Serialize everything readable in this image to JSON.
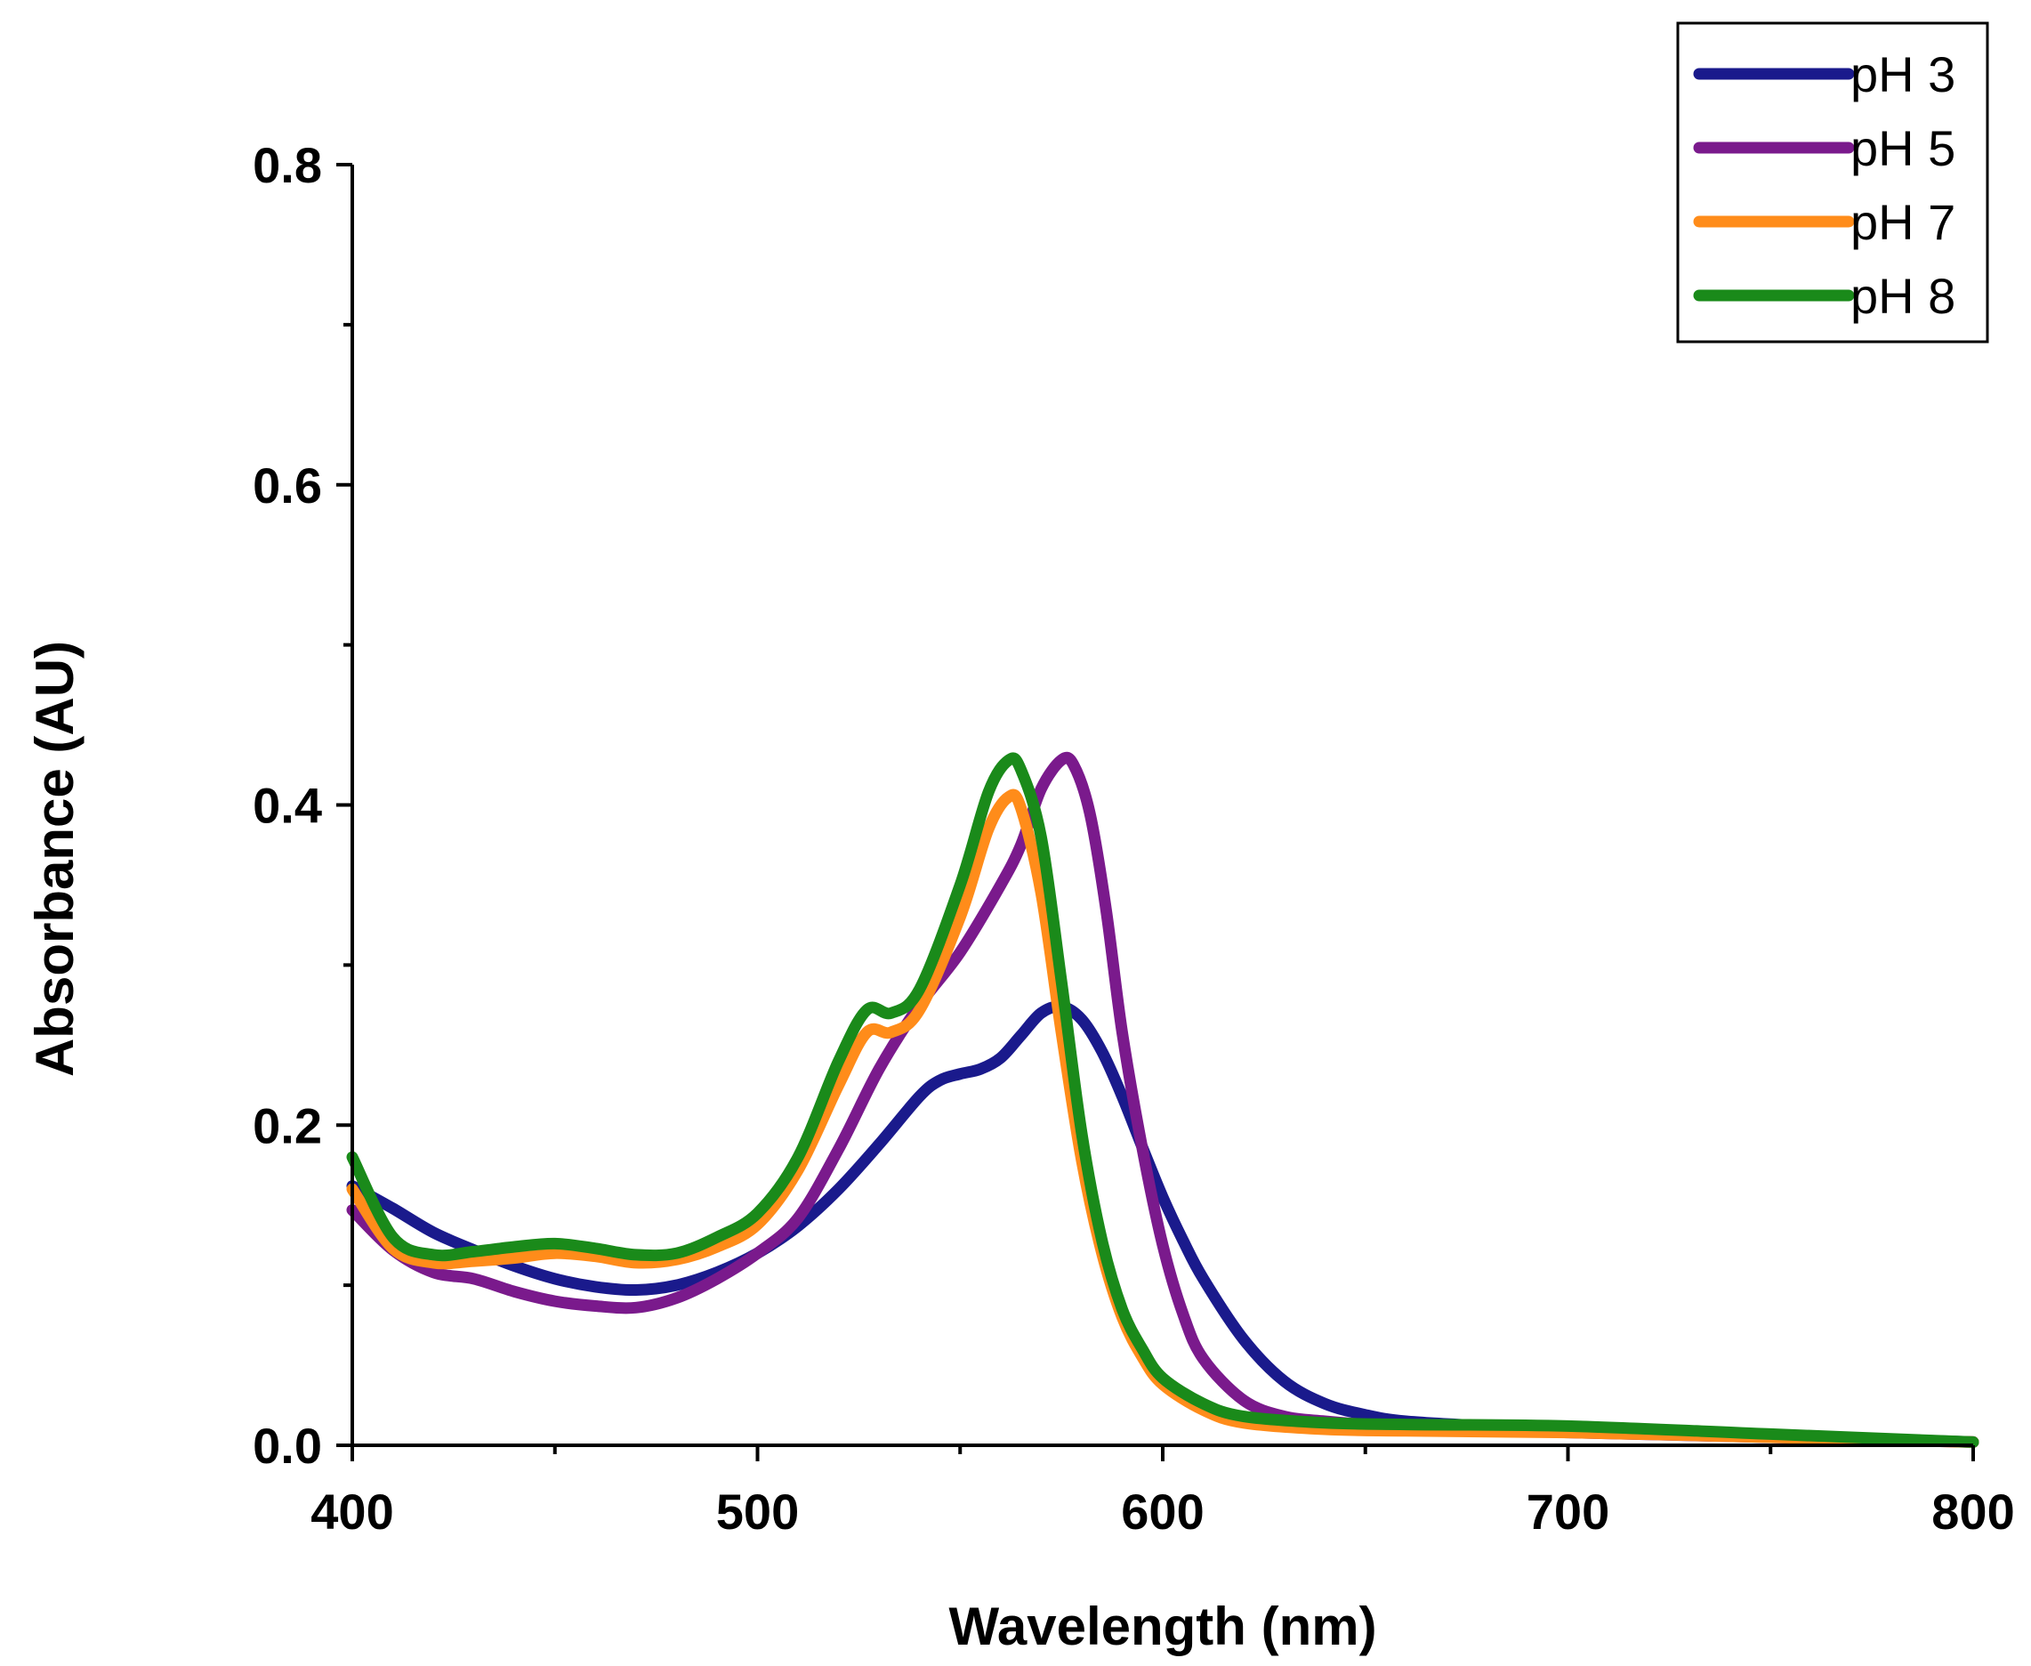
{
  "chart_data": {
    "type": "line",
    "xlabel": "Wavelength (nm)",
    "ylabel": "Absorbance (AU)",
    "xlim": [
      400,
      800
    ],
    "ylim": [
      0.0,
      0.8
    ],
    "x_ticks": [
      {
        "value": 400,
        "label": "400"
      },
      {
        "value": 500,
        "label": "500"
      },
      {
        "value": 600,
        "label": "600"
      },
      {
        "value": 700,
        "label": "700"
      },
      {
        "value": 800,
        "label": "800"
      }
    ],
    "x_minor_ticks": [
      450,
      550,
      650,
      750
    ],
    "y_ticks": [
      {
        "value": 0.0,
        "label": "0.0"
      },
      {
        "value": 0.2,
        "label": "0.2"
      },
      {
        "value": 0.4,
        "label": "0.4"
      },
      {
        "value": 0.6,
        "label": "0.6"
      },
      {
        "value": 0.8,
        "label": "0.8"
      }
    ],
    "y_minor_ticks": [
      0.1,
      0.3,
      0.5,
      0.7
    ],
    "grid": false,
    "legend_position": "top-right",
    "series": [
      {
        "name": "pH 3",
        "color": "#1a1a8c",
        "x": [
          400,
          410,
          420,
          430,
          440,
          450,
          460,
          470,
          480,
          490,
          500,
          510,
          520,
          530,
          540,
          545,
          550,
          555,
          560,
          565,
          570,
          575,
          580,
          585,
          590,
          595,
          600,
          605,
          610,
          620,
          630,
          640,
          650,
          660,
          680,
          700,
          750,
          800
        ],
        "y": [
          0.162,
          0.148,
          0.133,
          0.122,
          0.112,
          0.104,
          0.099,
          0.097,
          0.1,
          0.108,
          0.12,
          0.137,
          0.16,
          0.188,
          0.218,
          0.228,
          0.232,
          0.235,
          0.242,
          0.256,
          0.27,
          0.274,
          0.266,
          0.246,
          0.218,
          0.186,
          0.155,
          0.128,
          0.104,
          0.066,
          0.04,
          0.026,
          0.019,
          0.015,
          0.012,
          0.01,
          0.006,
          0.002
        ]
      },
      {
        "name": "pH 5",
        "color": "#7a1a8c",
        "x": [
          400,
          410,
          420,
          430,
          440,
          450,
          460,
          470,
          480,
          490,
          500,
          510,
          520,
          530,
          540,
          550,
          560,
          565,
          570,
          575,
          578,
          582,
          586,
          590,
          595,
          600,
          605,
          610,
          620,
          630,
          640,
          650,
          660,
          680,
          700,
          750,
          800
        ],
        "y": [
          0.147,
          0.122,
          0.108,
          0.104,
          0.096,
          0.09,
          0.087,
          0.086,
          0.092,
          0.104,
          0.12,
          0.142,
          0.185,
          0.235,
          0.275,
          0.308,
          0.35,
          0.375,
          0.41,
          0.428,
          0.425,
          0.395,
          0.335,
          0.258,
          0.185,
          0.125,
          0.082,
          0.054,
          0.028,
          0.018,
          0.015,
          0.013,
          0.012,
          0.01,
          0.008,
          0.005,
          0.002
        ]
      },
      {
        "name": "pH 7",
        "color": "#ff8c1a",
        "x": [
          400,
          410,
          420,
          430,
          440,
          450,
          460,
          470,
          480,
          490,
          500,
          510,
          520,
          527,
          533,
          540,
          550,
          557,
          562,
          565,
          570,
          575,
          580,
          585,
          590,
          595,
          600,
          610,
          620,
          640,
          660,
          700,
          750,
          800
        ],
        "y": [
          0.16,
          0.123,
          0.114,
          0.115,
          0.117,
          0.12,
          0.118,
          0.114,
          0.116,
          0.124,
          0.138,
          0.172,
          0.225,
          0.258,
          0.258,
          0.272,
          0.33,
          0.385,
          0.405,
          0.398,
          0.345,
          0.258,
          0.178,
          0.12,
          0.08,
          0.055,
          0.038,
          0.022,
          0.014,
          0.01,
          0.009,
          0.008,
          0.005,
          0.002
        ]
      },
      {
        "name": "pH 8",
        "color": "#1a8a1a",
        "x": [
          400,
          410,
          420,
          430,
          440,
          450,
          460,
          470,
          480,
          490,
          500,
          510,
          520,
          527,
          533,
          540,
          550,
          557,
          562,
          565,
          570,
          575,
          580,
          585,
          590,
          595,
          600,
          610,
          620,
          640,
          660,
          700,
          750,
          800
        ],
        "y": [
          0.18,
          0.13,
          0.119,
          0.121,
          0.124,
          0.126,
          0.123,
          0.119,
          0.12,
          0.13,
          0.145,
          0.18,
          0.24,
          0.272,
          0.27,
          0.285,
          0.35,
          0.408,
          0.428,
          0.422,
          0.38,
          0.29,
          0.195,
          0.128,
          0.085,
          0.06,
          0.042,
          0.026,
          0.018,
          0.014,
          0.013,
          0.012,
          0.007,
          0.002
        ]
      }
    ]
  }
}
